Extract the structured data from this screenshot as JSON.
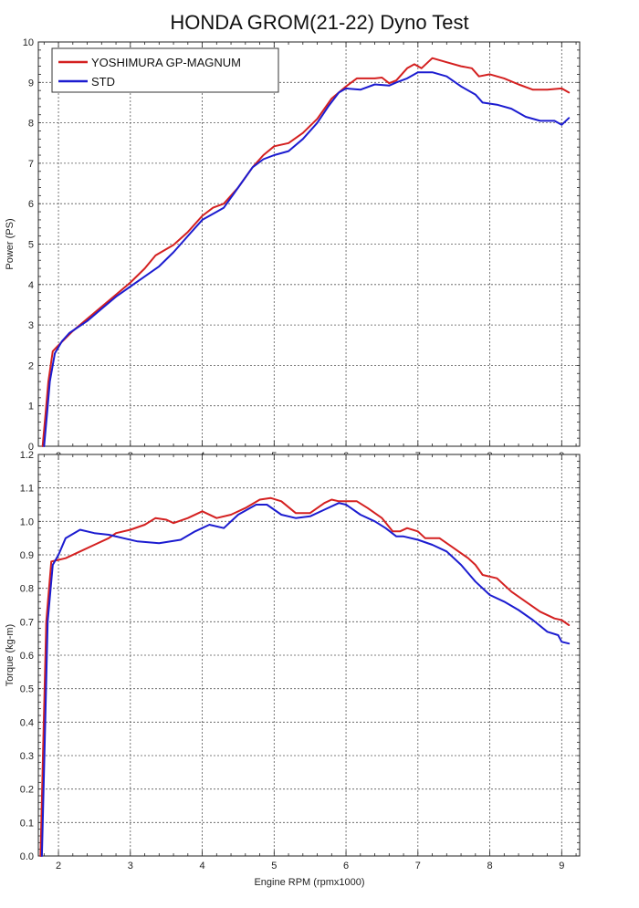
{
  "title": "HONDA GROM(21-22) Dyno Test",
  "xlabel": "Engine RPM (rpmx1000)",
  "colors": {
    "yoshimura": "#d42020",
    "std": "#1c1cd0",
    "grid": "#555555"
  },
  "legend": {
    "placement": "top-left",
    "entries": [
      "YOSHIMURA GP-MAGNUM",
      "STD"
    ]
  },
  "chart_data": [
    {
      "type": "line",
      "ylabel": "Power (PS)",
      "xlim": [
        1.72,
        9.25
      ],
      "ylim": [
        0,
        10
      ],
      "xticks": [
        2,
        3,
        4,
        5,
        6,
        7,
        8,
        9
      ],
      "yticks": [
        0,
        1,
        2,
        3,
        4,
        5,
        6,
        7,
        8,
        9,
        10
      ],
      "grid": true,
      "series": [
        {
          "name": "YOSHIMURA GP-MAGNUM",
          "points": [
            [
              1.78,
              0
            ],
            [
              1.82,
              0.8
            ],
            [
              1.86,
              1.6
            ],
            [
              1.92,
              2.35
            ],
            [
              2.0,
              2.5
            ],
            [
              2.2,
              2.85
            ],
            [
              2.5,
              3.3
            ],
            [
              2.8,
              3.75
            ],
            [
              3.0,
              4.05
            ],
            [
              3.2,
              4.4
            ],
            [
              3.35,
              4.72
            ],
            [
              3.6,
              4.98
            ],
            [
              3.8,
              5.3
            ],
            [
              4.0,
              5.7
            ],
            [
              4.15,
              5.9
            ],
            [
              4.3,
              6.0
            ],
            [
              4.5,
              6.4
            ],
            [
              4.7,
              6.9
            ],
            [
              4.85,
              7.2
            ],
            [
              5.0,
              7.42
            ],
            [
              5.2,
              7.5
            ],
            [
              5.4,
              7.75
            ],
            [
              5.6,
              8.1
            ],
            [
              5.8,
              8.6
            ],
            [
              6.0,
              8.9
            ],
            [
              6.15,
              9.1
            ],
            [
              6.4,
              9.1
            ],
            [
              6.5,
              9.12
            ],
            [
              6.6,
              8.98
            ],
            [
              6.7,
              9.05
            ],
            [
              6.85,
              9.35
            ],
            [
              6.95,
              9.45
            ],
            [
              7.05,
              9.35
            ],
            [
              7.2,
              9.6
            ],
            [
              7.4,
              9.5
            ],
            [
              7.6,
              9.4
            ],
            [
              7.75,
              9.35
            ],
            [
              7.85,
              9.15
            ],
            [
              8.0,
              9.2
            ],
            [
              8.2,
              9.1
            ],
            [
              8.4,
              8.95
            ],
            [
              8.6,
              8.82
            ],
            [
              8.8,
              8.82
            ],
            [
              9.0,
              8.85
            ],
            [
              9.1,
              8.75
            ]
          ]
        },
        {
          "name": "STD",
          "points": [
            [
              1.8,
              0
            ],
            [
              1.84,
              0.8
            ],
            [
              1.88,
              1.6
            ],
            [
              1.95,
              2.3
            ],
            [
              2.05,
              2.6
            ],
            [
              2.15,
              2.8
            ],
            [
              2.4,
              3.1
            ],
            [
              2.6,
              3.4
            ],
            [
              2.8,
              3.7
            ],
            [
              3.0,
              3.95
            ],
            [
              3.2,
              4.2
            ],
            [
              3.4,
              4.45
            ],
            [
              3.6,
              4.8
            ],
            [
              3.8,
              5.2
            ],
            [
              4.0,
              5.6
            ],
            [
              4.2,
              5.8
            ],
            [
              4.3,
              5.9
            ],
            [
              4.5,
              6.4
            ],
            [
              4.7,
              6.9
            ],
            [
              4.85,
              7.1
            ],
            [
              5.0,
              7.2
            ],
            [
              5.2,
              7.3
            ],
            [
              5.4,
              7.6
            ],
            [
              5.6,
              8.0
            ],
            [
              5.75,
              8.4
            ],
            [
              5.9,
              8.75
            ],
            [
              6.0,
              8.85
            ],
            [
              6.2,
              8.82
            ],
            [
              6.4,
              8.95
            ],
            [
              6.6,
              8.92
            ],
            [
              6.7,
              9.0
            ],
            [
              6.85,
              9.1
            ],
            [
              7.0,
              9.25
            ],
            [
              7.2,
              9.25
            ],
            [
              7.4,
              9.15
            ],
            [
              7.6,
              8.9
            ],
            [
              7.8,
              8.7
            ],
            [
              7.9,
              8.5
            ],
            [
              8.1,
              8.45
            ],
            [
              8.3,
              8.35
            ],
            [
              8.5,
              8.15
            ],
            [
              8.7,
              8.05
            ],
            [
              8.9,
              8.05
            ],
            [
              9.0,
              7.95
            ],
            [
              9.1,
              8.12
            ]
          ]
        }
      ]
    },
    {
      "type": "line",
      "ylabel": "Torque (kg-m)",
      "xlim": [
        1.72,
        9.25
      ],
      "ylim": [
        0,
        1.2
      ],
      "xticks": [
        2,
        3,
        4,
        5,
        6,
        7,
        8,
        9
      ],
      "yticks": [
        0,
        0.1,
        0.2,
        0.3,
        0.4,
        0.5,
        0.6,
        0.7,
        0.8,
        0.9,
        1.0,
        1.1,
        1.2
      ],
      "grid": true,
      "series": [
        {
          "name": "YOSHIMURA GP-MAGNUM",
          "points": [
            [
              1.75,
              0
            ],
            [
              1.79,
              0.35
            ],
            [
              1.83,
              0.7
            ],
            [
              1.9,
              0.88
            ],
            [
              2.0,
              0.885
            ],
            [
              2.1,
              0.89
            ],
            [
              2.3,
              0.91
            ],
            [
              2.5,
              0.93
            ],
            [
              2.7,
              0.95
            ],
            [
              2.8,
              0.965
            ],
            [
              3.0,
              0.975
            ],
            [
              3.2,
              0.99
            ],
            [
              3.35,
              1.01
            ],
            [
              3.5,
              1.005
            ],
            [
              3.6,
              0.995
            ],
            [
              3.8,
              1.01
            ],
            [
              4.0,
              1.03
            ],
            [
              4.2,
              1.01
            ],
            [
              4.4,
              1.02
            ],
            [
              4.6,
              1.04
            ],
            [
              4.8,
              1.065
            ],
            [
              4.95,
              1.07
            ],
            [
              5.1,
              1.06
            ],
            [
              5.3,
              1.025
            ],
            [
              5.5,
              1.025
            ],
            [
              5.7,
              1.055
            ],
            [
              5.8,
              1.065
            ],
            [
              5.9,
              1.06
            ],
            [
              6.0,
              1.06
            ],
            [
              6.15,
              1.06
            ],
            [
              6.3,
              1.04
            ],
            [
              6.5,
              1.01
            ],
            [
              6.65,
              0.97
            ],
            [
              6.75,
              0.97
            ],
            [
              6.85,
              0.98
            ],
            [
              7.0,
              0.97
            ],
            [
              7.1,
              0.95
            ],
            [
              7.3,
              0.95
            ],
            [
              7.5,
              0.92
            ],
            [
              7.7,
              0.89
            ],
            [
              7.8,
              0.87
            ],
            [
              7.9,
              0.84
            ],
            [
              8.1,
              0.83
            ],
            [
              8.3,
              0.79
            ],
            [
              8.5,
              0.76
            ],
            [
              8.7,
              0.73
            ],
            [
              8.9,
              0.71
            ],
            [
              9.0,
              0.705
            ],
            [
              9.1,
              0.69
            ]
          ]
        },
        {
          "name": "STD",
          "points": [
            [
              1.77,
              0
            ],
            [
              1.81,
              0.35
            ],
            [
              1.85,
              0.7
            ],
            [
              1.92,
              0.87
            ],
            [
              2.0,
              0.9
            ],
            [
              2.1,
              0.95
            ],
            [
              2.3,
              0.975
            ],
            [
              2.5,
              0.965
            ],
            [
              2.7,
              0.96
            ],
            [
              2.9,
              0.95
            ],
            [
              3.1,
              0.94
            ],
            [
              3.4,
              0.935
            ],
            [
              3.7,
              0.945
            ],
            [
              3.9,
              0.97
            ],
            [
              4.1,
              0.99
            ],
            [
              4.3,
              0.98
            ],
            [
              4.5,
              1.02
            ],
            [
              4.75,
              1.05
            ],
            [
              4.9,
              1.05
            ],
            [
              5.1,
              1.02
            ],
            [
              5.3,
              1.01
            ],
            [
              5.5,
              1.015
            ],
            [
              5.7,
              1.035
            ],
            [
              5.9,
              1.055
            ],
            [
              6.0,
              1.05
            ],
            [
              6.2,
              1.02
            ],
            [
              6.4,
              1.0
            ],
            [
              6.55,
              0.98
            ],
            [
              6.7,
              0.955
            ],
            [
              6.8,
              0.955
            ],
            [
              7.0,
              0.945
            ],
            [
              7.2,
              0.93
            ],
            [
              7.4,
              0.91
            ],
            [
              7.6,
              0.87
            ],
            [
              7.8,
              0.82
            ],
            [
              8.0,
              0.78
            ],
            [
              8.2,
              0.76
            ],
            [
              8.4,
              0.735
            ],
            [
              8.6,
              0.705
            ],
            [
              8.8,
              0.67
            ],
            [
              8.95,
              0.66
            ],
            [
              9.0,
              0.64
            ],
            [
              9.1,
              0.635
            ]
          ]
        }
      ]
    }
  ]
}
